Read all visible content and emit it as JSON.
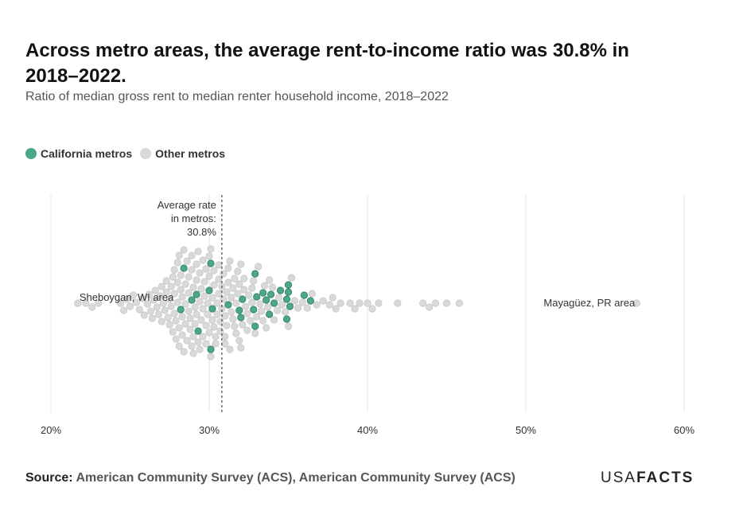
{
  "chart_data": {
    "type": "beeswarm",
    "title": "Across metro areas, the average rent-to-income ratio was 30.8% in 2018–2022.",
    "subtitle": "Ratio of median gross rent to median renter household income, 2018–2022",
    "xlim": [
      20,
      60
    ],
    "xticks": [
      {
        "value": 20,
        "label": "20%"
      },
      {
        "value": 30,
        "label": "30%"
      },
      {
        "value": 40,
        "label": "40%"
      },
      {
        "value": 50,
        "label": "50%"
      },
      {
        "value": 60,
        "label": "60%"
      }
    ],
    "grid": true,
    "legend": "top-left",
    "average": {
      "value": 30.8,
      "lines": [
        "Average rate",
        "in metros:",
        "30.8%"
      ]
    },
    "point_labels": [
      {
        "text": "Sheboygan, WI area",
        "value": 21.7
      },
      {
        "text": "Mayagüez, PR area",
        "value": 57.0
      }
    ],
    "series": [
      {
        "name": "California metros",
        "color": "#4aa887",
        "values": [
          28.2,
          28.4,
          28.9,
          29.2,
          29.3,
          30.0,
          30.1,
          30.1,
          30.2,
          31.2,
          31.9,
          32.0,
          32.1,
          32.8,
          32.9,
          32.9,
          33.0,
          33.4,
          33.6,
          33.8,
          33.9,
          34.1,
          34.5,
          34.9,
          34.9,
          35.0,
          35.0,
          35.1,
          36.0,
          36.4
        ]
      },
      {
        "name": "Other metros",
        "color": "#d9d9d9",
        "values": [
          21.7,
          22.2,
          22.6,
          23.0,
          24.4,
          24.6,
          24.8,
          25.0,
          25.2,
          25.4,
          25.6,
          25.8,
          25.9,
          26.1,
          26.2,
          26.3,
          26.4,
          26.5,
          26.6,
          26.7,
          26.8,
          26.9,
          27.0,
          27.0,
          27.1,
          27.2,
          27.3,
          27.3,
          27.4,
          27.5,
          27.5,
          27.6,
          27.6,
          27.7,
          27.7,
          27.8,
          27.8,
          27.8,
          27.9,
          27.9,
          28.0,
          28.0,
          28.0,
          28.1,
          28.1,
          28.1,
          28.2,
          28.2,
          28.3,
          28.3,
          28.3,
          28.4,
          28.4,
          28.5,
          28.5,
          28.5,
          28.6,
          28.6,
          28.7,
          28.7,
          28.7,
          28.8,
          28.8,
          28.9,
          28.9,
          28.9,
          29.0,
          29.0,
          29.0,
          29.1,
          29.1,
          29.2,
          29.2,
          29.2,
          29.3,
          29.3,
          29.4,
          29.4,
          29.4,
          29.5,
          29.5,
          29.6,
          29.6,
          29.6,
          29.7,
          29.7,
          29.8,
          29.8,
          29.8,
          29.9,
          29.9,
          30.0,
          30.0,
          30.0,
          30.1,
          30.1,
          30.2,
          30.2,
          30.3,
          30.3,
          30.3,
          30.4,
          30.4,
          30.5,
          30.5,
          30.6,
          30.6,
          30.6,
          30.7,
          30.7,
          30.8,
          30.8,
          30.9,
          30.9,
          31.0,
          31.0,
          31.0,
          31.1,
          31.1,
          31.2,
          31.2,
          31.3,
          31.3,
          31.4,
          31.4,
          31.5,
          31.5,
          31.6,
          31.6,
          31.7,
          31.7,
          31.8,
          31.8,
          31.9,
          31.9,
          32.0,
          32.0,
          32.1,
          32.2,
          32.2,
          32.3,
          32.4,
          32.4,
          32.5,
          32.6,
          32.7,
          32.7,
          32.8,
          32.9,
          33.0,
          33.1,
          33.2,
          33.3,
          33.4,
          33.5,
          33.6,
          33.7,
          33.8,
          34.0,
          34.1,
          34.3,
          34.4,
          34.6,
          34.8,
          35.0,
          35.2,
          35.4,
          35.6,
          35.9,
          36.2,
          36.5,
          36.8,
          37.2,
          37.6,
          37.8,
          38.0,
          38.3,
          38.9,
          39.2,
          39.5,
          40.0,
          40.3,
          40.7,
          41.9,
          43.5,
          43.9,
          44.3,
          45.0,
          45.8,
          57.0
        ]
      }
    ]
  },
  "source": {
    "label": "Source:",
    "text": "American Community Survey (ACS), American Community Survey (ACS)"
  },
  "logo": {
    "light": "USA",
    "bold": "FACTS"
  }
}
